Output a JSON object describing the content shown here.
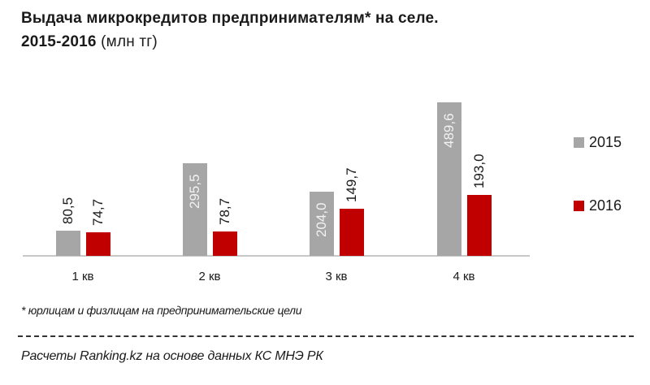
{
  "title": {
    "line1": "Выдача микрокредитов  предпринимателям*  на селе.",
    "line2_bold": "2015-2016",
    "line2_unit": "(млн тг)"
  },
  "legend": [
    {
      "label": "2015",
      "color": "#a6a6a6"
    },
    {
      "label": "2016",
      "color": "#c00000"
    }
  ],
  "categories": [
    "1 кв",
    "2 кв",
    "3 кв",
    "4 кв"
  ],
  "labels": {
    "s2015": [
      "80,5",
      "295,5",
      "204,0",
      "489,6"
    ],
    "s2016": [
      "74,7",
      "78,7",
      "149,7",
      "193,0"
    ]
  },
  "footnote": "* юрлицам и физлицам на предпринимательские цели",
  "source": "Расчеты Ranking.kz на основе данных  КС МНЭ РК",
  "chart_data": {
    "type": "bar",
    "title": "Выдача микрокредитов предпринимателям* на селе. 2015-2016 (млн тг)",
    "xlabel": "",
    "ylabel": "млн тг",
    "categories": [
      "1 кв",
      "2 кв",
      "3 кв",
      "4 кв"
    ],
    "series": [
      {
        "name": "2015",
        "color": "#a6a6a6",
        "values": [
          80.5,
          295.5,
          204.0,
          489.6
        ]
      },
      {
        "name": "2016",
        "color": "#c00000",
        "values": [
          74.7,
          78.7,
          149.7,
          193.0
        ]
      }
    ],
    "ylim": [
      0,
      500
    ],
    "grid": false,
    "legend_position": "right",
    "data_labels": "rotated vertical, comma decimal separator",
    "annotations": [
      "* юрлицам и физлицам на предпринимательские цели",
      "Расчеты Ranking.kz на основе данных КС МНЭ РК"
    ]
  }
}
